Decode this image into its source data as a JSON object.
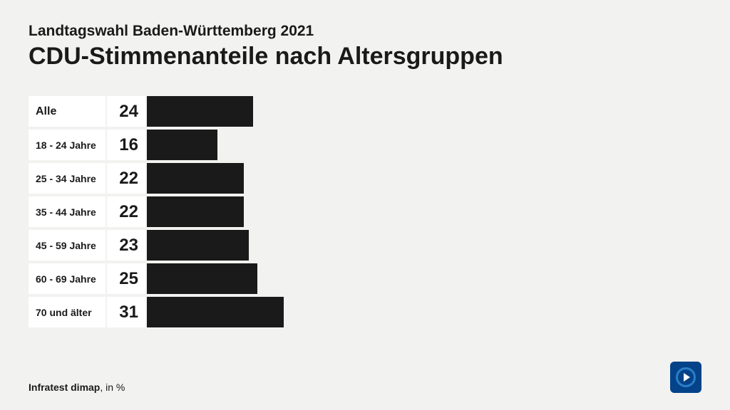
{
  "header": {
    "subtitle": "Landtagswahl Baden-Württemberg 2021",
    "title": "CDU-Stimmenanteile nach Altersgruppen"
  },
  "chart": {
    "type": "bar-horizontal",
    "bar_color": "#1a1a1a",
    "cell_bg": "#ffffff",
    "page_bg": "#f2f2f0",
    "max_value": 100,
    "bar_pixel_scale": 6.2,
    "label_fontsize_first": 16,
    "label_fontsize": 14,
    "value_fontsize": 24,
    "rows": [
      {
        "label": "Alle",
        "value": 24
      },
      {
        "label": "18 - 24 Jahre",
        "value": 16
      },
      {
        "label": "25 - 34 Jahre",
        "value": 22
      },
      {
        "label": "35 - 44 Jahre",
        "value": 22
      },
      {
        "label": "45 - 59 Jahre",
        "value": 23
      },
      {
        "label": "60 - 69 Jahre",
        "value": 25
      },
      {
        "label": "70 und älter",
        "value": 31
      }
    ]
  },
  "footer": {
    "source": "Infratest dimap",
    "unit": ", in %"
  },
  "logo": {
    "bg_color": "#044389",
    "ring_color": "#2a7fc7",
    "triangle_color": "#ffffff"
  }
}
